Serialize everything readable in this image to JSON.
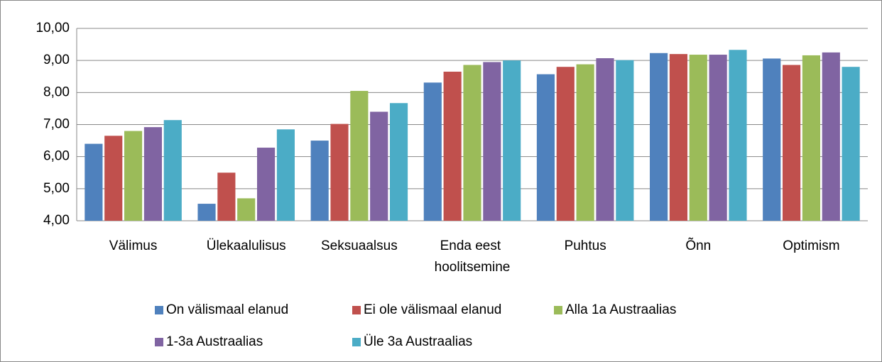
{
  "chart_data": {
    "type": "bar",
    "categories": [
      "Välimus",
      "Ülekaalulisus",
      "Seksuaalsus",
      "Enda eest hoolitsemine",
      "Puhtus",
      "Õnn",
      "Optimism"
    ],
    "series": [
      {
        "name": "On välismaal elanud",
        "color": "#4f81bd",
        "values": [
          6.4,
          4.53,
          6.5,
          8.31,
          8.57,
          9.23,
          9.06
        ]
      },
      {
        "name": "Ei ole välismaal elanud",
        "color": "#c0504d",
        "values": [
          6.65,
          5.5,
          7.02,
          8.65,
          8.8,
          9.2,
          8.86
        ]
      },
      {
        "name": "Alla 1a Austraalias",
        "color": "#9bbb59",
        "values": [
          6.8,
          4.7,
          8.05,
          8.86,
          8.88,
          9.18,
          9.16
        ]
      },
      {
        "name": "1-3a Austraalias",
        "color": "#8064a2",
        "values": [
          6.92,
          6.28,
          7.4,
          8.95,
          9.07,
          9.18,
          9.25
        ]
      },
      {
        "name": "Üle 3a Austraalias",
        "color": "#4bacc6",
        "values": [
          7.14,
          6.85,
          7.67,
          9.0,
          9.01,
          9.33,
          8.8
        ]
      }
    ],
    "ylim": [
      4,
      10
    ],
    "yticks": [
      {
        "value": 4,
        "label": "4,00"
      },
      {
        "value": 5,
        "label": "5,00"
      },
      {
        "value": 6,
        "label": "6,00"
      },
      {
        "value": 7,
        "label": "7,00"
      },
      {
        "value": 8,
        "label": "8,00"
      },
      {
        "value": 9,
        "label": "9,00"
      },
      {
        "value": 10,
        "label": "10,00"
      }
    ],
    "grid": true,
    "legend": "bottom"
  }
}
